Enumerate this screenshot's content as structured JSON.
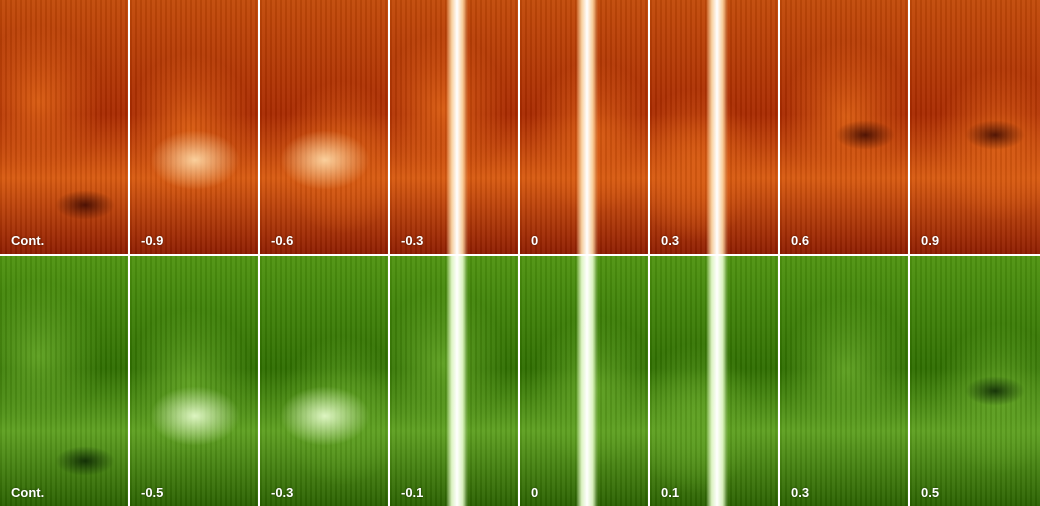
{
  "rows": [
    {
      "labels": [
        "Cont.",
        "-0.9",
        "-0.6",
        "-0.3",
        "0",
        "0.3",
        "0.6",
        "0.9"
      ]
    },
    {
      "labels": [
        "Cont.",
        "-0.5",
        "-0.3",
        "-0.1",
        "0",
        "0.1",
        "0.3",
        "0.5"
      ]
    }
  ]
}
